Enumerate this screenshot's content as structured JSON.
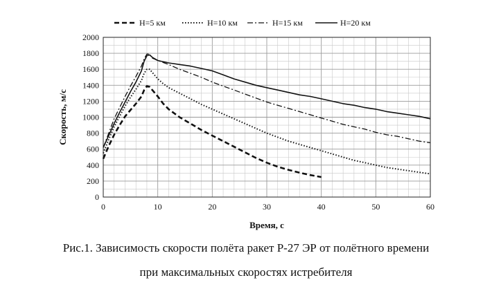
{
  "chart_data": {
    "type": "line",
    "xlabel": "Время, с",
    "ylabel": "Скорость, м/с",
    "xlim": [
      0,
      60
    ],
    "ylim": [
      0,
      2000
    ],
    "x_ticks": [
      0,
      10,
      20,
      30,
      40,
      50,
      60
    ],
    "y_ticks": [
      0,
      200,
      400,
      600,
      800,
      1000,
      1200,
      1400,
      1600,
      1800,
      2000
    ],
    "grid": true,
    "legend_position": "top",
    "series": [
      {
        "name": "H=5 км",
        "style": "dashed",
        "points": [
          [
            0,
            480
          ],
          [
            1,
            640
          ],
          [
            2,
            780
          ],
          [
            3,
            900
          ],
          [
            4,
            1010
          ],
          [
            5,
            1090
          ],
          [
            6,
            1170
          ],
          [
            7,
            1260
          ],
          [
            7.5,
            1340
          ],
          [
            8,
            1390
          ],
          [
            8.5,
            1380
          ],
          [
            9,
            1340
          ],
          [
            10,
            1260
          ],
          [
            11,
            1170
          ],
          [
            12,
            1100
          ],
          [
            14,
            1000
          ],
          [
            16,
            920
          ],
          [
            18,
            840
          ],
          [
            20,
            770
          ],
          [
            22,
            700
          ],
          [
            24,
            630
          ],
          [
            26,
            560
          ],
          [
            28,
            490
          ],
          [
            30,
            430
          ],
          [
            32,
            380
          ],
          [
            34,
            340
          ],
          [
            36,
            305
          ],
          [
            38,
            275
          ],
          [
            40,
            250
          ]
        ]
      },
      {
        "name": "H=10 км",
        "style": "dotted",
        "points": [
          [
            0,
            550
          ],
          [
            1,
            720
          ],
          [
            2,
            880
          ],
          [
            3,
            1010
          ],
          [
            4,
            1140
          ],
          [
            5,
            1250
          ],
          [
            6,
            1350
          ],
          [
            7,
            1460
          ],
          [
            7.5,
            1550
          ],
          [
            8,
            1600
          ],
          [
            8.5,
            1600
          ],
          [
            9,
            1560
          ],
          [
            10,
            1480
          ],
          [
            11,
            1420
          ],
          [
            12,
            1370
          ],
          [
            14,
            1300
          ],
          [
            16,
            1230
          ],
          [
            18,
            1160
          ],
          [
            20,
            1100
          ],
          [
            22,
            1040
          ],
          [
            24,
            980
          ],
          [
            26,
            920
          ],
          [
            28,
            860
          ],
          [
            30,
            800
          ],
          [
            32,
            750
          ],
          [
            34,
            700
          ],
          [
            36,
            660
          ],
          [
            38,
            620
          ],
          [
            40,
            580
          ],
          [
            42,
            540
          ],
          [
            44,
            500
          ],
          [
            46,
            460
          ],
          [
            48,
            430
          ],
          [
            50,
            400
          ],
          [
            52,
            370
          ],
          [
            54,
            350
          ],
          [
            56,
            330
          ],
          [
            58,
            310
          ],
          [
            60,
            290
          ]
        ]
      },
      {
        "name": "H=15 км",
        "style": "dash-dot",
        "points": [
          [
            0,
            620
          ],
          [
            1,
            800
          ],
          [
            2,
            980
          ],
          [
            3,
            1120
          ],
          [
            4,
            1260
          ],
          [
            5,
            1390
          ],
          [
            6,
            1510
          ],
          [
            7,
            1640
          ],
          [
            7.5,
            1730
          ],
          [
            8,
            1790
          ],
          [
            8.5,
            1790
          ],
          [
            9,
            1740
          ],
          [
            10,
            1710
          ],
          [
            12,
            1660
          ],
          [
            14,
            1600
          ],
          [
            16,
            1550
          ],
          [
            18,
            1500
          ],
          [
            20,
            1440
          ],
          [
            22,
            1390
          ],
          [
            24,
            1340
          ],
          [
            26,
            1290
          ],
          [
            28,
            1240
          ],
          [
            30,
            1190
          ],
          [
            32,
            1150
          ],
          [
            34,
            1110
          ],
          [
            36,
            1070
          ],
          [
            38,
            1030
          ],
          [
            40,
            990
          ],
          [
            42,
            950
          ],
          [
            44,
            910
          ],
          [
            46,
            880
          ],
          [
            48,
            850
          ],
          [
            50,
            810
          ],
          [
            52,
            780
          ],
          [
            54,
            760
          ],
          [
            56,
            730
          ],
          [
            58,
            700
          ],
          [
            60,
            680
          ]
        ]
      },
      {
        "name": "H=20 км",
        "style": "solid",
        "points": [
          [
            0,
            620
          ],
          [
            1,
            770
          ],
          [
            2,
            920
          ],
          [
            3,
            1060
          ],
          [
            4,
            1190
          ],
          [
            5,
            1320
          ],
          [
            6,
            1440
          ],
          [
            7,
            1580
          ],
          [
            7.5,
            1700
          ],
          [
            8,
            1770
          ],
          [
            8.5,
            1780
          ],
          [
            9,
            1750
          ],
          [
            10,
            1710
          ],
          [
            12,
            1680
          ],
          [
            14,
            1660
          ],
          [
            16,
            1640
          ],
          [
            18,
            1610
          ],
          [
            20,
            1580
          ],
          [
            22,
            1530
          ],
          [
            24,
            1480
          ],
          [
            26,
            1440
          ],
          [
            28,
            1400
          ],
          [
            30,
            1370
          ],
          [
            32,
            1340
          ],
          [
            34,
            1310
          ],
          [
            36,
            1280
          ],
          [
            38,
            1260
          ],
          [
            40,
            1230
          ],
          [
            42,
            1200
          ],
          [
            44,
            1170
          ],
          [
            46,
            1150
          ],
          [
            48,
            1120
          ],
          [
            50,
            1100
          ],
          [
            52,
            1070
          ],
          [
            54,
            1050
          ],
          [
            56,
            1030
          ],
          [
            58,
            1010
          ],
          [
            60,
            980
          ]
        ]
      }
    ]
  },
  "caption": {
    "line1": "Рис.1. Зависимость скорости полёта ракет Р-27 ЭР от полётного времени",
    "line2": "при максимальных скоростях истребителя"
  }
}
